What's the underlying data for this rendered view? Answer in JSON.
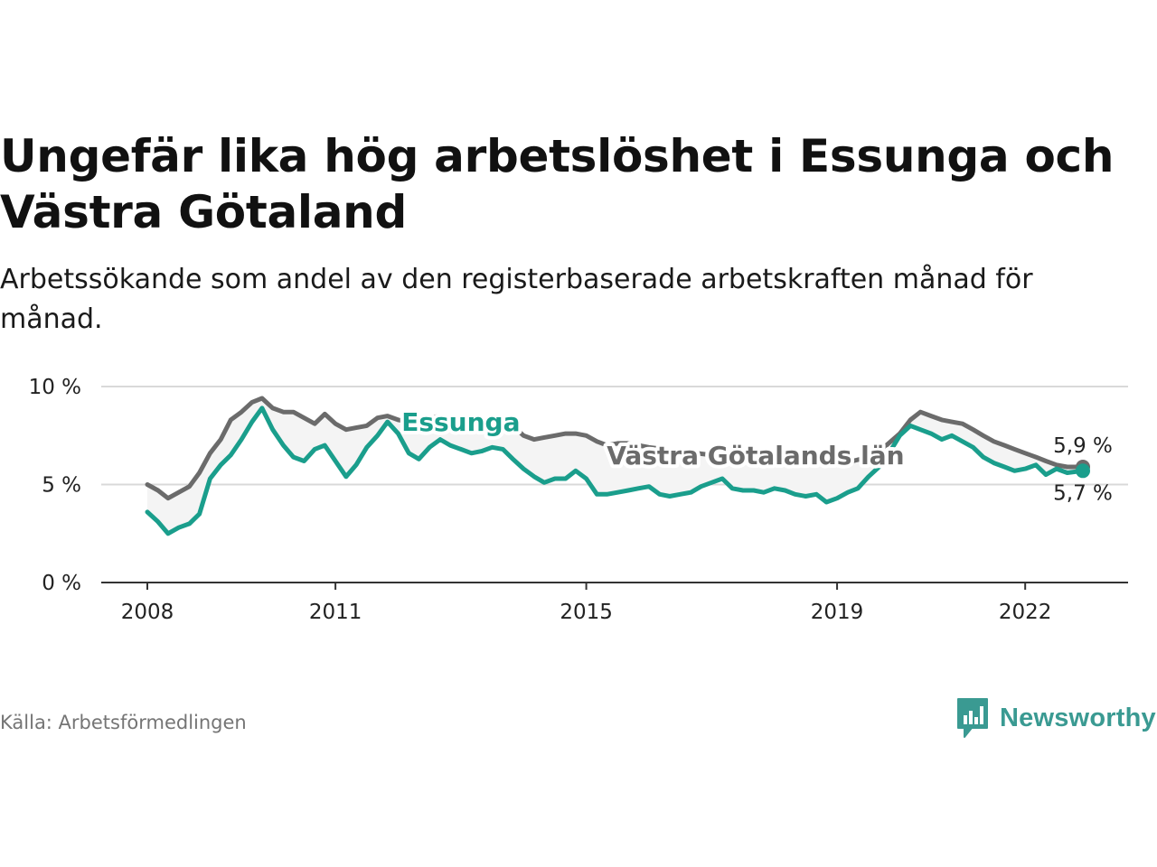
{
  "header": {
    "title": "Ungefär lika hög arbetslöshet i Essunga och Västra Götaland",
    "subtitle": "Arbetssökande som andel av den registerbaserade arbetskraften månad för månad."
  },
  "footer": {
    "source": "Källa: Arbetsförmedlingen",
    "brand": "Newsworthy"
  },
  "colors": {
    "essunga": "#1a9e8c",
    "region": "#6b6b6b",
    "band": "#f4f4f4",
    "grid": "#d9d9d9",
    "axis": "#333333",
    "brand": "#3a9a92"
  },
  "chart_data": {
    "type": "line",
    "title": "Ungefär lika hög arbetslöshet i Essunga och Västra Götaland",
    "xlabel": "",
    "ylabel": "",
    "xlim": [
      2008.0,
      2022.92
    ],
    "ylim": [
      0,
      10
    ],
    "y_ticks": [
      0,
      5,
      10
    ],
    "y_tick_labels": [
      "0 %",
      "5 %",
      "10 %"
    ],
    "x_ticks": [
      2008,
      2011,
      2015,
      2019,
      2022
    ],
    "x_tick_labels": [
      "2008",
      "2011",
      "2015",
      "2019",
      "2022"
    ],
    "grid": true,
    "series": [
      {
        "name": "Västra Götalands län",
        "label": "Västra Götalands län",
        "end_label": "5,9 %",
        "x": [
          2008.0,
          2008.17,
          2008.33,
          2008.5,
          2008.67,
          2008.83,
          2009.0,
          2009.17,
          2009.33,
          2009.5,
          2009.67,
          2009.83,
          2010.0,
          2010.17,
          2010.33,
          2010.5,
          2010.67,
          2010.83,
          2011.0,
          2011.17,
          2011.33,
          2011.5,
          2011.67,
          2011.83,
          2012.0,
          2012.17,
          2012.33,
          2012.5,
          2012.67,
          2012.83,
          2013.0,
          2013.17,
          2013.33,
          2013.5,
          2013.67,
          2013.83,
          2014.0,
          2014.17,
          2014.33,
          2014.5,
          2014.67,
          2014.83,
          2015.0,
          2015.17,
          2015.33,
          2015.5,
          2015.67,
          2015.83,
          2016.0,
          2016.5,
          2017.0,
          2017.5,
          2018.0,
          2018.5,
          2019.0,
          2019.25,
          2019.5,
          2019.75,
          2020.0,
          2020.17,
          2020.33,
          2020.5,
          2020.67,
          2020.83,
          2021.0,
          2021.17,
          2021.33,
          2021.5,
          2021.67,
          2021.83,
          2022.0,
          2022.17,
          2022.33,
          2022.5,
          2022.67,
          2022.92
        ],
        "values": [
          5.0,
          4.7,
          4.3,
          4.6,
          4.9,
          5.6,
          6.6,
          7.3,
          8.3,
          8.7,
          9.2,
          9.4,
          8.9,
          8.7,
          8.7,
          8.4,
          8.1,
          8.6,
          8.1,
          7.8,
          7.9,
          8.0,
          8.4,
          8.5,
          8.3,
          8.2,
          8.2,
          8.4,
          8.5,
          8.4,
          8.3,
          8.2,
          8.3,
          8.3,
          8.2,
          8.0,
          7.5,
          7.3,
          7.4,
          7.5,
          7.6,
          7.6,
          7.5,
          7.2,
          7.0,
          7.1,
          7.1,
          7.0,
          6.9,
          6.7,
          6.5,
          6.4,
          6.3,
          6.2,
          6.1,
          6.2,
          6.4,
          6.9,
          7.6,
          8.3,
          8.7,
          8.5,
          8.3,
          8.2,
          8.1,
          7.8,
          7.5,
          7.2,
          7.0,
          6.8,
          6.6,
          6.4,
          6.2,
          6.0,
          5.9,
          5.9
        ]
      },
      {
        "name": "Essunga",
        "label": "Essunga",
        "end_label": "5,7 %",
        "x": [
          2008.0,
          2008.17,
          2008.33,
          2008.5,
          2008.67,
          2008.83,
          2009.0,
          2009.17,
          2009.33,
          2009.5,
          2009.67,
          2009.83,
          2010.0,
          2010.17,
          2010.33,
          2010.5,
          2010.67,
          2010.83,
          2011.0,
          2011.17,
          2011.33,
          2011.5,
          2011.67,
          2011.83,
          2012.0,
          2012.17,
          2012.33,
          2012.5,
          2012.67,
          2012.83,
          2013.0,
          2013.17,
          2013.33,
          2013.5,
          2013.67,
          2013.83,
          2014.0,
          2014.17,
          2014.33,
          2014.5,
          2014.67,
          2014.83,
          2015.0,
          2015.17,
          2015.33,
          2015.5,
          2015.67,
          2015.83,
          2016.0,
          2016.17,
          2016.33,
          2016.5,
          2016.67,
          2016.83,
          2017.0,
          2017.17,
          2017.33,
          2017.5,
          2017.67,
          2017.83,
          2018.0,
          2018.17,
          2018.33,
          2018.5,
          2018.67,
          2018.83,
          2019.0,
          2019.17,
          2019.33,
          2019.5,
          2019.67,
          2019.83,
          2020.0,
          2020.17,
          2020.33,
          2020.5,
          2020.67,
          2020.83,
          2021.0,
          2021.17,
          2021.33,
          2021.5,
          2021.67,
          2021.83,
          2022.0,
          2022.17,
          2022.33,
          2022.5,
          2022.67,
          2022.92
        ],
        "values": [
          3.6,
          3.1,
          2.5,
          2.8,
          3.0,
          3.5,
          5.3,
          6.0,
          6.5,
          7.3,
          8.2,
          8.9,
          7.8,
          7.0,
          6.4,
          6.2,
          6.8,
          7.0,
          6.2,
          5.4,
          6.0,
          6.9,
          7.5,
          8.2,
          7.6,
          6.6,
          6.3,
          6.9,
          7.3,
          7.0,
          6.8,
          6.6,
          6.7,
          6.9,
          6.8,
          6.3,
          5.8,
          5.4,
          5.1,
          5.3,
          5.3,
          5.7,
          5.3,
          4.5,
          4.5,
          4.6,
          4.7,
          4.8,
          4.9,
          4.5,
          4.4,
          4.5,
          4.6,
          4.9,
          5.1,
          5.3,
          4.8,
          4.7,
          4.7,
          4.6,
          4.8,
          4.7,
          4.5,
          4.4,
          4.5,
          4.1,
          4.3,
          4.6,
          4.8,
          5.4,
          5.9,
          6.6,
          7.5,
          8.0,
          7.8,
          7.6,
          7.3,
          7.5,
          7.2,
          6.9,
          6.4,
          6.1,
          5.9,
          5.7,
          5.8,
          6.0,
          5.5,
          5.8,
          5.6,
          5.7
        ]
      }
    ]
  }
}
